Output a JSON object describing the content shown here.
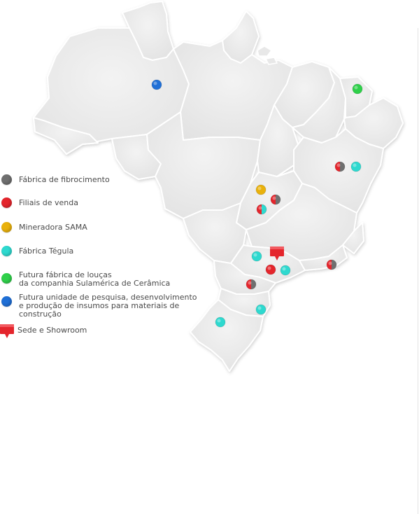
{
  "legend": {
    "items": [
      {
        "label": "Fábrica de fibrocimento",
        "icon": "gray-dot-icon",
        "color": "#6f6f6f"
      },
      {
        "label": "Filiais de venda",
        "icon": "red-dot-icon",
        "color": "#e4252c"
      },
      {
        "label": "Mineradora SAMA",
        "icon": "yellow-dot-icon",
        "color": "#e9b10c"
      },
      {
        "label": "Fábrica Tégula",
        "icon": "cyan-dot-icon",
        "color": "#2ed9cf"
      },
      {
        "label": "Futura fábrica de louças\nda companhia Sulamérica de Cerâmica",
        "icon": "green-dot-icon",
        "color": "#2fd04a"
      },
      {
        "label": "Futura unidade de pesquisa, desenvolvimento\ne produção de insumos para materiais de\nconstrução",
        "icon": "blue-dot-icon",
        "color": "#1f6fd6"
      },
      {
        "label": "Sede e Showroom",
        "icon": "red-pin-icon",
        "color": "#e4252c"
      }
    ]
  },
  "colors": {
    "gray": "#6f6f6f",
    "red": "#e4252c",
    "yellow": "#e9b10c",
    "cyan": "#2ed9cf",
    "green": "#2fd04a",
    "blue": "#1f6fd6",
    "map_fill": "#eaeaea",
    "map_border": "#ffffff"
  },
  "markers": [
    {
      "name": "manaus",
      "type": "blue"
    },
    {
      "name": "fortaleza",
      "type": "green"
    },
    {
      "name": "bahia-west",
      "type": "gray-red"
    },
    {
      "name": "bahia-east",
      "type": "cyan"
    },
    {
      "name": "goias-north",
      "type": "yellow"
    },
    {
      "name": "brasilia",
      "type": "gray-red"
    },
    {
      "name": "goias-south",
      "type": "cyan-red"
    },
    {
      "name": "sao-paulo-hq",
      "type": "pin"
    },
    {
      "name": "parana-north",
      "type": "cyan"
    },
    {
      "name": "sao-paulo",
      "type": "red"
    },
    {
      "name": "vale-paraiba",
      "type": "cyan"
    },
    {
      "name": "rio-de-janeiro",
      "type": "gray-red"
    },
    {
      "name": "curitiba",
      "type": "gray-red"
    },
    {
      "name": "santa-catarina",
      "type": "cyan"
    },
    {
      "name": "rio-grande-do-sul",
      "type": "cyan"
    }
  ]
}
